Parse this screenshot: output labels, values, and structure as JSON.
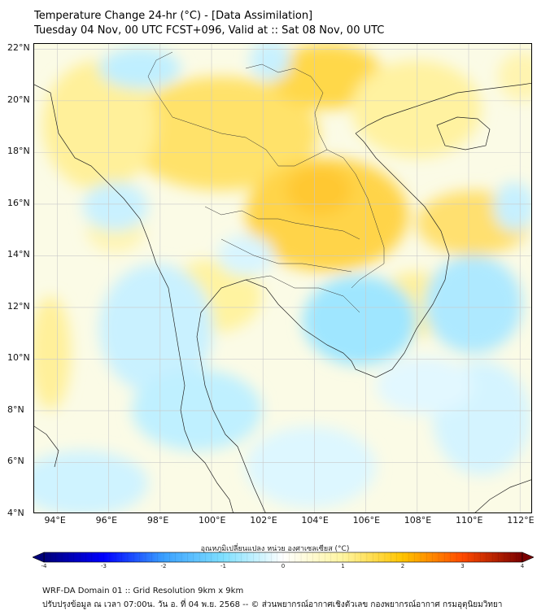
{
  "title_line1": "Temperature Change 24-hr (°C) - [Data Assimilation]",
  "title_line2": "Tuesday 04 Nov, 00 UTC FCST+096, Valid at :: Sat 08 Nov, 00 UTC",
  "map": {
    "lon_labels": [
      "94°E",
      "96°E",
      "98°E",
      "100°E",
      "102°E",
      "104°E",
      "106°E",
      "108°E",
      "110°E",
      "112°E"
    ],
    "lat_labels": [
      "22°N",
      "20°N",
      "18°N",
      "16°N",
      "14°N",
      "12°N",
      "10°N",
      "8°N",
      "6°N",
      "4°N"
    ],
    "lon_range": [
      93.1,
      112.5
    ],
    "lat_range": [
      4,
      22.2
    ],
    "gridlines": true
  },
  "colorbar": {
    "label": "อุณหภูมิเปลี่ยนแปลง หน่วย องศาเซลเซียส (°C)",
    "ticks": [
      "-4",
      "-3",
      "-2",
      "-1",
      "0",
      "1",
      "2",
      "3",
      "4"
    ],
    "range": [
      -4,
      4
    ],
    "colors": [
      "#00007a",
      "#0000ff",
      "#3aa0ff",
      "#7fe0ff",
      "#ffffff",
      "#fff5a0",
      "#ffc400",
      "#ff4a00",
      "#7a0000"
    ]
  },
  "footer_line1": "WRF-DA Domain 01 :: Grid Resolution 9km x 9km",
  "footer_line2": "ปรับปรุงข้อมูล ณ เวลา 07:00น. วัน อ. ที่ 04 พ.ย. 2568 -- © ส่วนพยากรณ์อากาศเชิงตัวเลข กองพยากรณ์อากาศ กรมอุตุนิยมวิทยา"
}
